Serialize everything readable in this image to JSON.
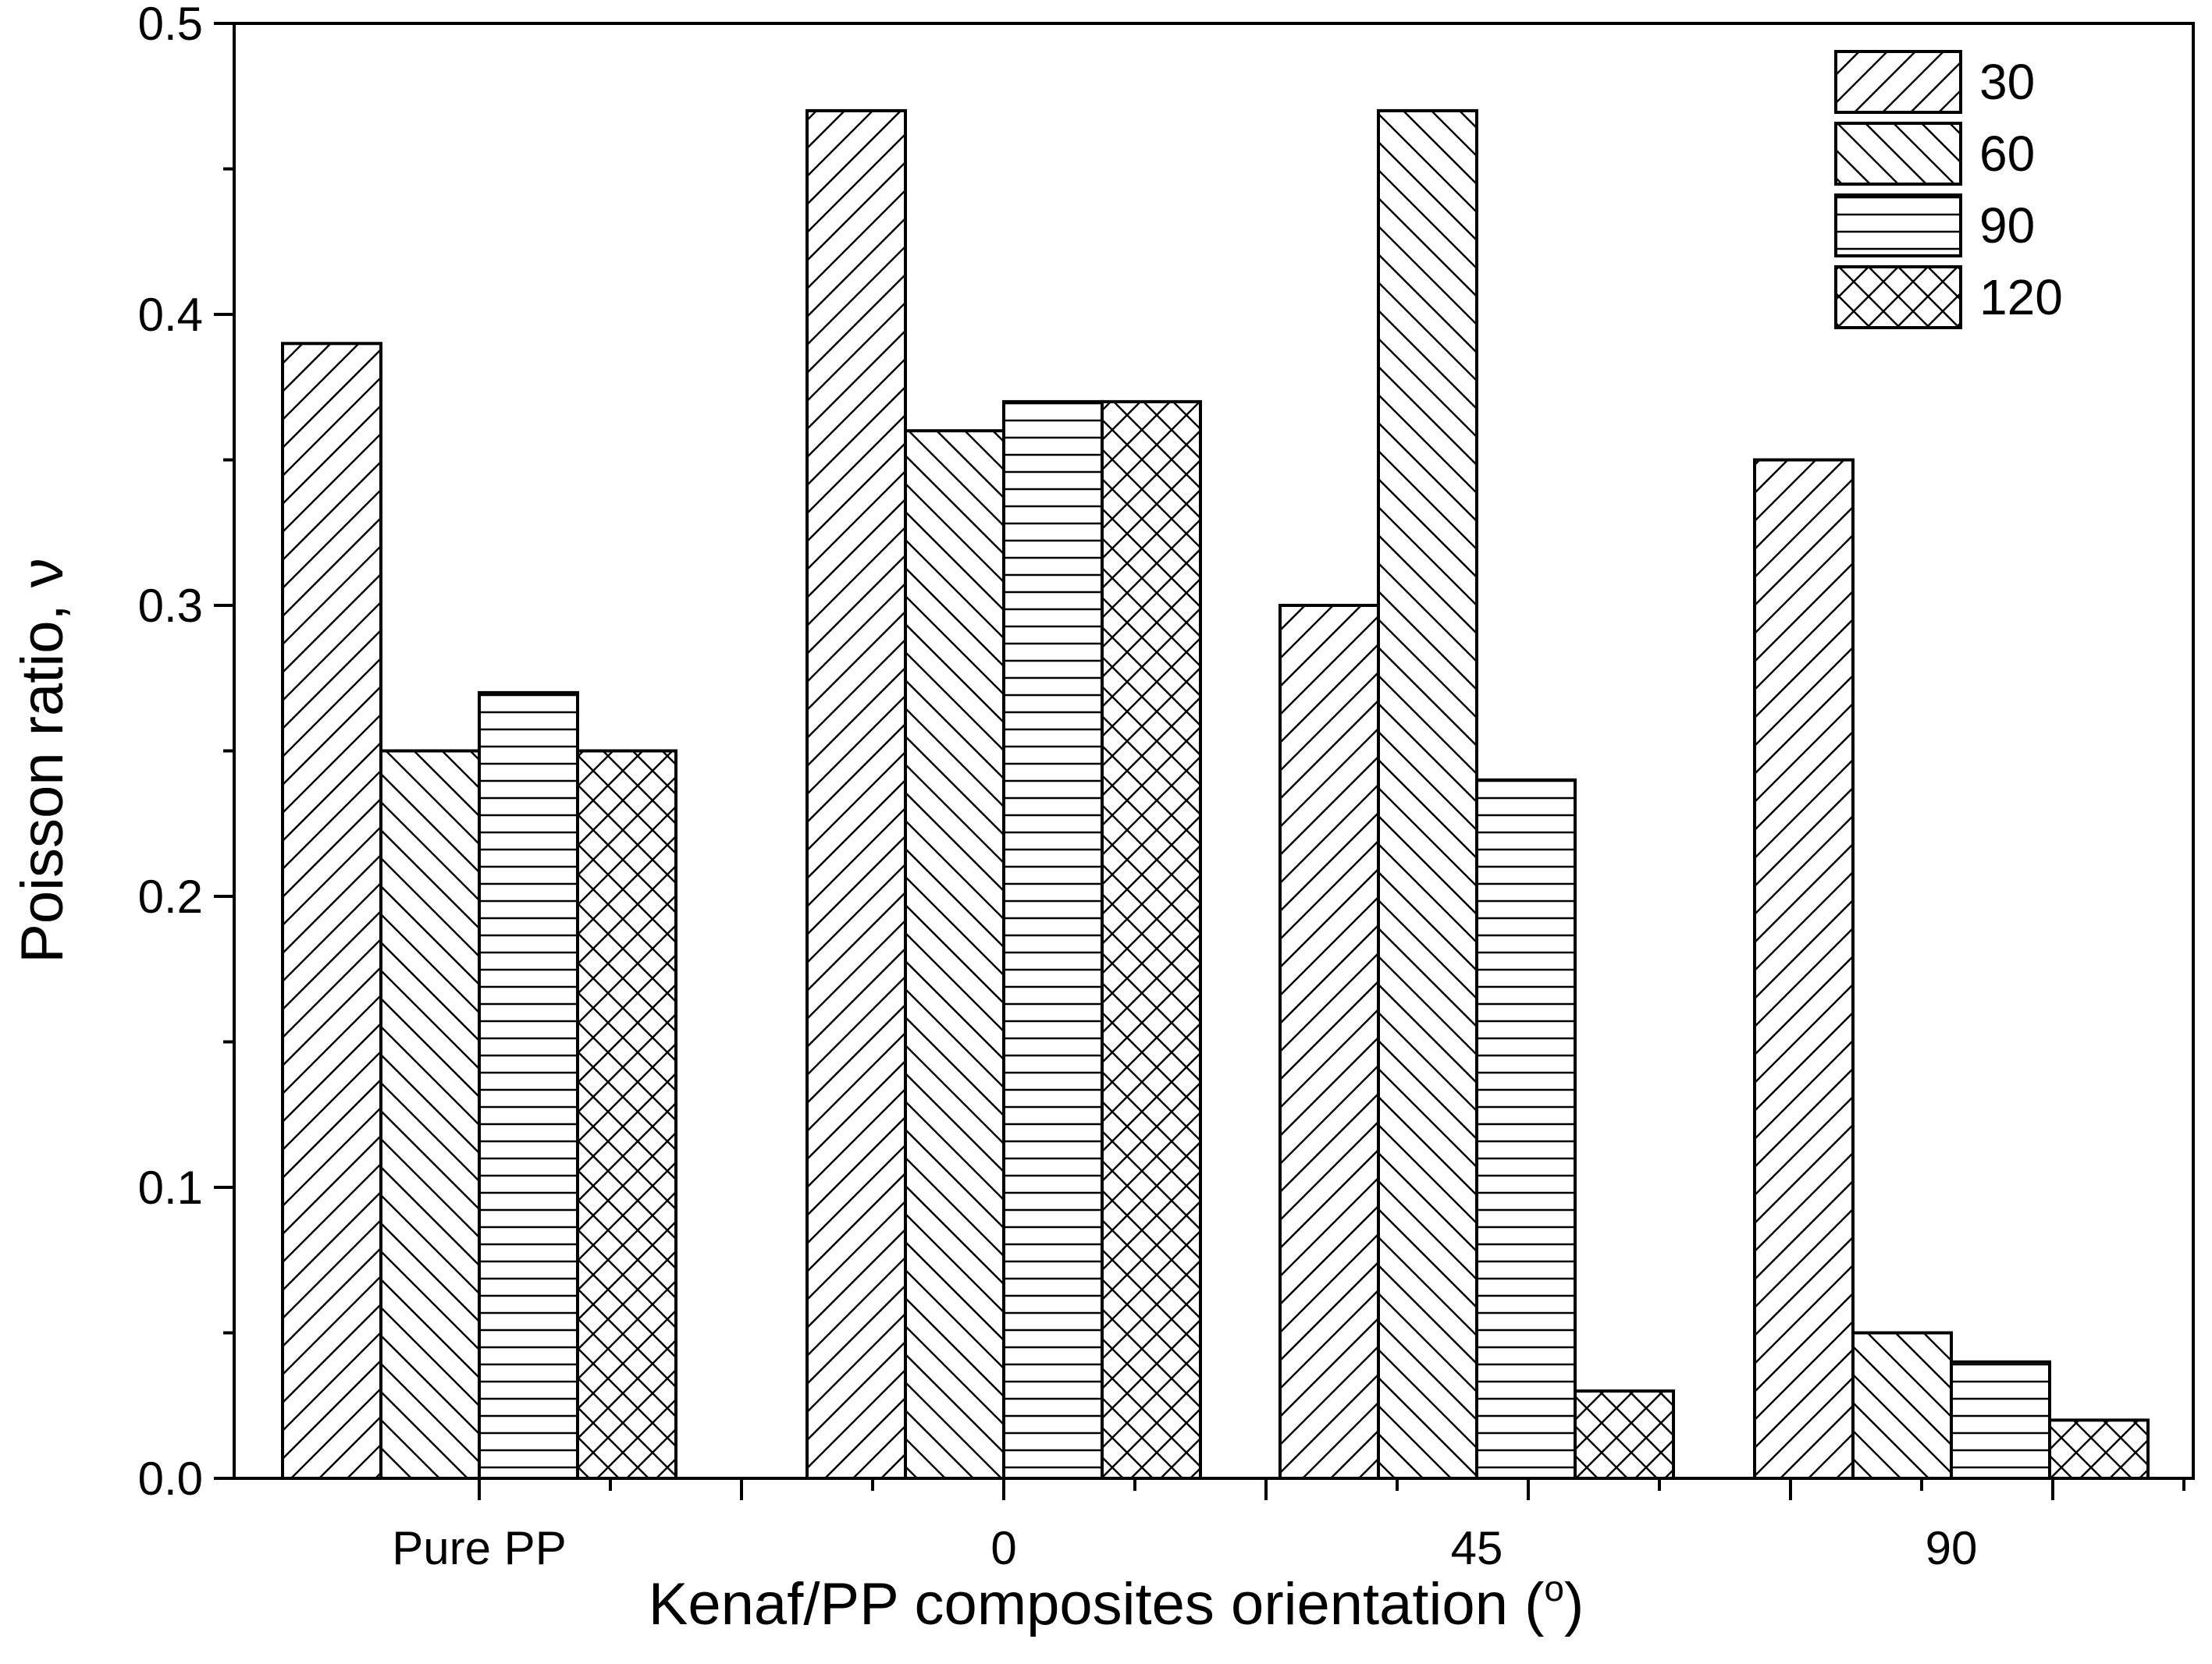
{
  "chart_data": {
    "type": "bar",
    "title": "",
    "xlabel": "Kenaf/PP composites orientation (",
    "xlabel_suffix": ")",
    "xlabel_superscript": "o",
    "ylabel": "Poisson ratio, ν",
    "categories": [
      "Pure PP",
      "0",
      "45",
      "90"
    ],
    "series": [
      {
        "name": "30",
        "pattern": "diagonal-up",
        "values": [
          0.39,
          0.47,
          0.3,
          0.35
        ]
      },
      {
        "name": "60",
        "pattern": "diagonal-down",
        "values": [
          0.25,
          0.36,
          0.47,
          0.05
        ]
      },
      {
        "name": "90",
        "pattern": "horizontal",
        "values": [
          0.27,
          0.37,
          0.24,
          0.04
        ]
      },
      {
        "name": "120",
        "pattern": "crosshatch",
        "values": [
          0.25,
          0.37,
          0.03,
          0.02
        ]
      }
    ],
    "ylim": [
      0,
      0.5
    ],
    "yticks": [
      "0.0",
      "0.1",
      "0.2",
      "0.3",
      "0.4",
      "0.5"
    ],
    "grid": false,
    "legend_position": "top-right",
    "colors": {
      "fill": "#ffffff",
      "stroke": "#000000"
    }
  }
}
